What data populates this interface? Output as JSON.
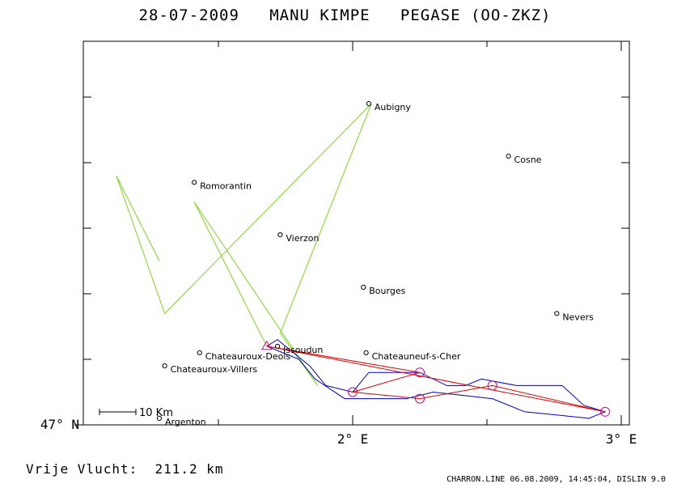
{
  "header": {
    "title": "28-07-2009   MANU KIMPE   PEGASE (OO-ZKZ)"
  },
  "map": {
    "axes": {
      "x_ticks": [
        {
          "value": 2,
          "label": "2° E"
        },
        {
          "value": 3,
          "label": "3° E"
        }
      ],
      "y_ticks": [
        {
          "value": 47,
          "label": "47° N"
        }
      ]
    },
    "scale_bar_label": "10 Km",
    "cities": [
      {
        "name": "Aubigny",
        "lon": 2.06,
        "lat": 47.49
      },
      {
        "name": "Cosne",
        "lon": 2.58,
        "lat": 47.41
      },
      {
        "name": "Romorantin",
        "lon": 1.41,
        "lat": 47.37
      },
      {
        "name": "Vierzon",
        "lon": 1.73,
        "lat": 47.29
      },
      {
        "name": "Bourges",
        "lon": 2.04,
        "lat": 47.21
      },
      {
        "name": "Nevers",
        "lon": 2.76,
        "lat": 47.17
      },
      {
        "name": "Issoudun",
        "lon": 1.72,
        "lat": 47.12
      },
      {
        "name": "Chateauroux-Deols",
        "lon": 1.43,
        "lat": 47.11
      },
      {
        "name": "Chateauneuf-s-Cher",
        "lon": 2.05,
        "lat": 47.11
      },
      {
        "name": "Chateauroux-Villers",
        "lon": 1.3,
        "lat": 47.09
      },
      {
        "name": "Argenton",
        "lon": 1.28,
        "lat": 47.01
      }
    ],
    "colors": {
      "axis": "#000000",
      "towing_track": "#7cd61e",
      "flight_track": "#0000cc",
      "task_line": "#e00000",
      "turnpoint": "#e0007a"
    },
    "towing_track": [
      [
        1.68,
        47.12
      ],
      [
        1.41,
        47.34
      ],
      [
        1.87,
        47.06
      ],
      [
        1.73,
        47.14
      ],
      [
        2.07,
        47.49
      ],
      [
        1.3,
        47.17
      ],
      [
        1.12,
        47.38
      ],
      [
        1.28,
        47.25
      ]
    ],
    "flight_track": [
      [
        1.68,
        47.12
      ],
      [
        1.72,
        47.13
      ],
      [
        1.84,
        47.09
      ],
      [
        1.9,
        47.06
      ],
      [
        2.0,
        47.05
      ],
      [
        2.06,
        47.08
      ],
      [
        2.25,
        47.08
      ],
      [
        2.35,
        47.06
      ],
      [
        2.42,
        47.06
      ],
      [
        2.48,
        47.07
      ],
      [
        2.61,
        47.06
      ],
      [
        2.78,
        47.06
      ],
      [
        2.86,
        47.03
      ],
      [
        2.94,
        47.02
      ],
      [
        2.88,
        47.01
      ],
      [
        2.64,
        47.02
      ],
      [
        2.52,
        47.04
      ],
      [
        2.3,
        47.05
      ],
      [
        2.2,
        47.04
      ],
      [
        2.07,
        47.04
      ],
      [
        1.97,
        47.04
      ],
      [
        1.86,
        47.07
      ],
      [
        1.8,
        47.1
      ],
      [
        1.74,
        47.11
      ],
      [
        1.68,
        47.12
      ]
    ],
    "task_points": [
      [
        1.68,
        47.12
      ],
      [
        2.94,
        47.02
      ],
      [
        2.52,
        47.06
      ],
      [
        2.25,
        47.04
      ],
      [
        2.0,
        47.05
      ],
      [
        2.25,
        47.08
      ],
      [
        1.68,
        47.12
      ]
    ],
    "turnpoints": [
      [
        2.94,
        47.02
      ],
      [
        2.52,
        47.06
      ],
      [
        2.25,
        47.04
      ],
      [
        2.0,
        47.05
      ],
      [
        2.25,
        47.08
      ]
    ],
    "start_point": [
      1.68,
      47.12
    ]
  },
  "summary": {
    "free_flight": "Vrije Vlucht:  211.2 km"
  },
  "footer": {
    "credit": "CHARRON.LINE 06.08.2009, 14:45:04, DISLIN 9.0"
  }
}
